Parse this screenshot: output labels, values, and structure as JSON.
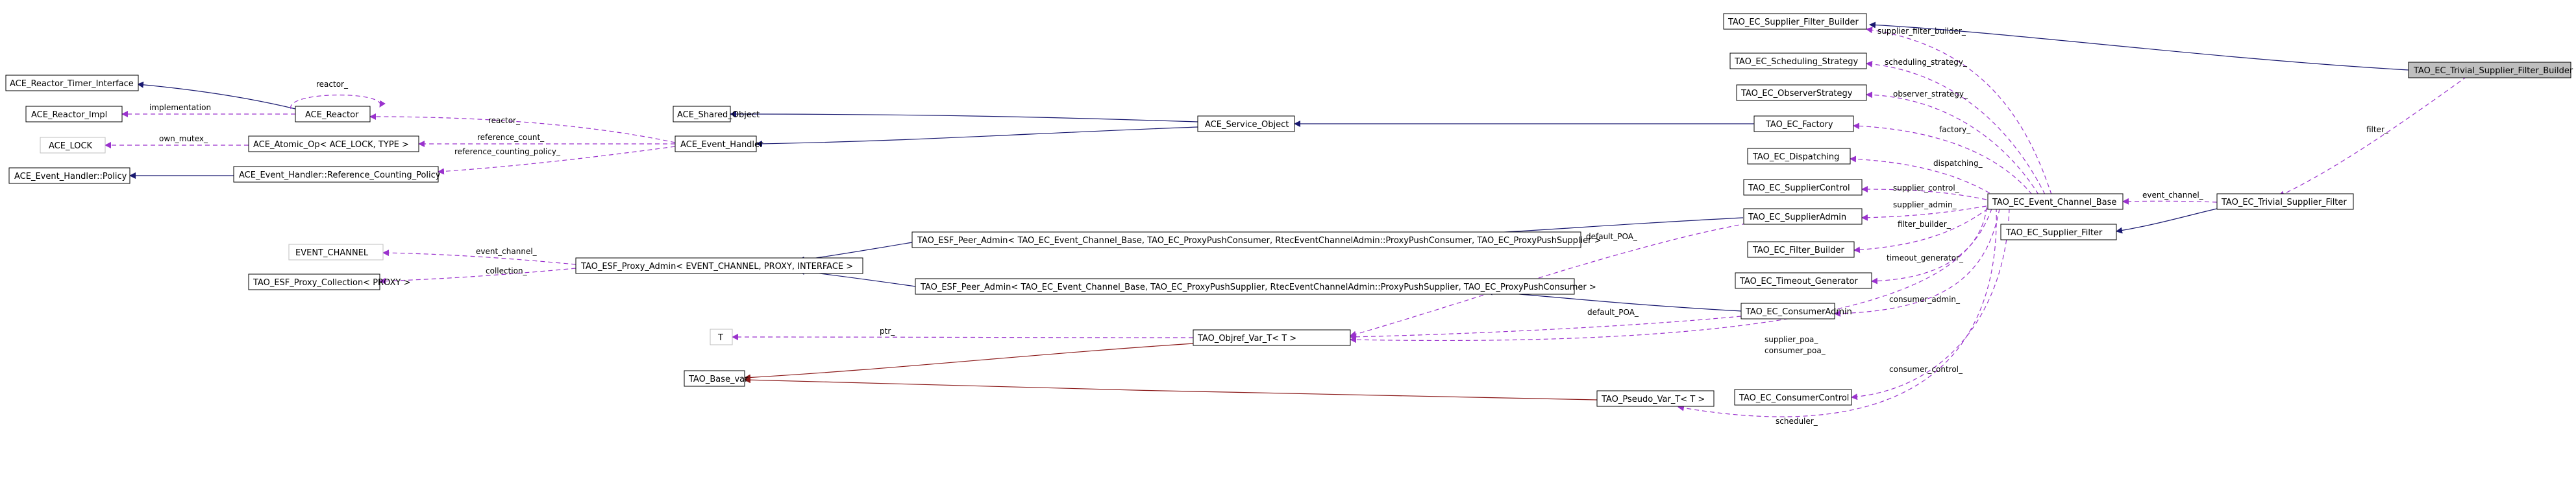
{
  "colors": {
    "inherit": "#191970",
    "use": "#9a32cd",
    "inherit_alt": "#8b1a1a",
    "focus_fill": "#bfbfbf",
    "gray_border": "#bfbfbf"
  },
  "nodes": {
    "ace_reactor_timer_interface": "ACE_Reactor_Timer_Interface",
    "ace_reactor_impl": "ACE_Reactor_Impl",
    "ace_reactor": "ACE_Reactor",
    "ace_lock": "ACE_LOCK",
    "ace_atomic_op": "ACE_Atomic_Op< ACE_LOCK, TYPE >",
    "ace_event_handler_policy": "ACE_Event_Handler::Policy",
    "ace_event_handler_rcp": "ACE_Event_Handler::Reference_Counting_Policy",
    "ace_shared_object": "ACE_Shared_Object",
    "ace_event_handler": "ACE_Event_Handler",
    "ace_service_object": "ACE_Service_Object",
    "event_channel": "EVENT_CHANNEL",
    "tao_esf_proxy_collection": "TAO_ESF_Proxy_Collection< PROXY >",
    "tao_esf_proxy_admin": "TAO_ESF_Proxy_Admin< EVENT_CHANNEL, PROXY, INTERFACE >",
    "tao_esf_peer_admin_consumer": "TAO_ESF_Peer_Admin< TAO_EC_Event_Channel_Base, TAO_EC_ProxyPushConsumer, RtecEventChannelAdmin::ProxyPushConsumer, TAO_EC_ProxyPushSupplier >",
    "tao_esf_peer_admin_supplier": "TAO_ESF_Peer_Admin< TAO_EC_Event_Channel_Base, TAO_EC_ProxyPushSupplier, RtecEventChannelAdmin::ProxyPushSupplier, TAO_EC_ProxyPushConsumer >",
    "t": "T",
    "tao_base_var": "TAO_Base_var",
    "tao_objref_var_t": "TAO_Objref_Var_T< T >",
    "tao_pseudo_var_t": "TAO_Pseudo_Var_T< T >",
    "tao_ec_supplier_filter_builder": "TAO_EC_Supplier_Filter_Builder",
    "tao_ec_scheduling_strategy": "TAO_EC_Scheduling_Strategy",
    "tao_ec_observerstrategy": "TAO_EC_ObserverStrategy",
    "tao_ec_factory": "TAO_EC_Factory",
    "tao_ec_dispatching": "TAO_EC_Dispatching",
    "tao_ec_suppliercontrol": "TAO_EC_SupplierControl",
    "tao_ec_supplieradmin": "TAO_EC_SupplierAdmin",
    "tao_ec_filter_builder": "TAO_EC_Filter_Builder",
    "tao_ec_timeout_generator": "TAO_EC_Timeout_Generator",
    "tao_ec_consumeradmin": "TAO_EC_ConsumerAdmin",
    "tao_ec_consumercontrol": "TAO_EC_ConsumerControl",
    "tao_ec_event_channel_base": "TAO_EC_Event_Channel_Base",
    "tao_ec_supplier_filter": "TAO_EC_Supplier_Filter",
    "tao_ec_trivial_supplier_filter": "TAO_EC_Trivial_Supplier_Filter",
    "tao_ec_trivial_supplier_filter_builder": "TAO_EC_Trivial_Supplier_Filter_Builder"
  },
  "labels": {
    "reactor_self": "reactor_",
    "implementation": "implementation",
    "reactor": "reactor_",
    "own_mutex": "own_mutex_",
    "reference_count": "reference_count_",
    "reference_counting_policy": "reference_counting_policy_",
    "event_channel": "event_channel_",
    "collection": "collection_",
    "ptr": "ptr_",
    "default_poa_1": "default_POA_",
    "default_poa_2": "default_POA_",
    "supplier_filter_builder": "supplier_filter_builder_",
    "scheduling_strategy": "scheduling_strategy_",
    "observer_strategy": "observer_strategy_",
    "factory": "factory_",
    "dispatching": "dispatching_",
    "supplier_control": "supplier_control_",
    "supplier_admin": "supplier_admin_",
    "filter_builder": "filter_builder_",
    "timeout_generator": "timeout_generator_",
    "consumer_admin": "consumer_admin_",
    "supplier_poa": "supplier_poa_",
    "consumer_poa": "consumer_poa_",
    "consumer_control": "consumer_control_",
    "scheduler": "scheduler_",
    "event_channel_2": "event_channel_",
    "filter": "filter_"
  }
}
